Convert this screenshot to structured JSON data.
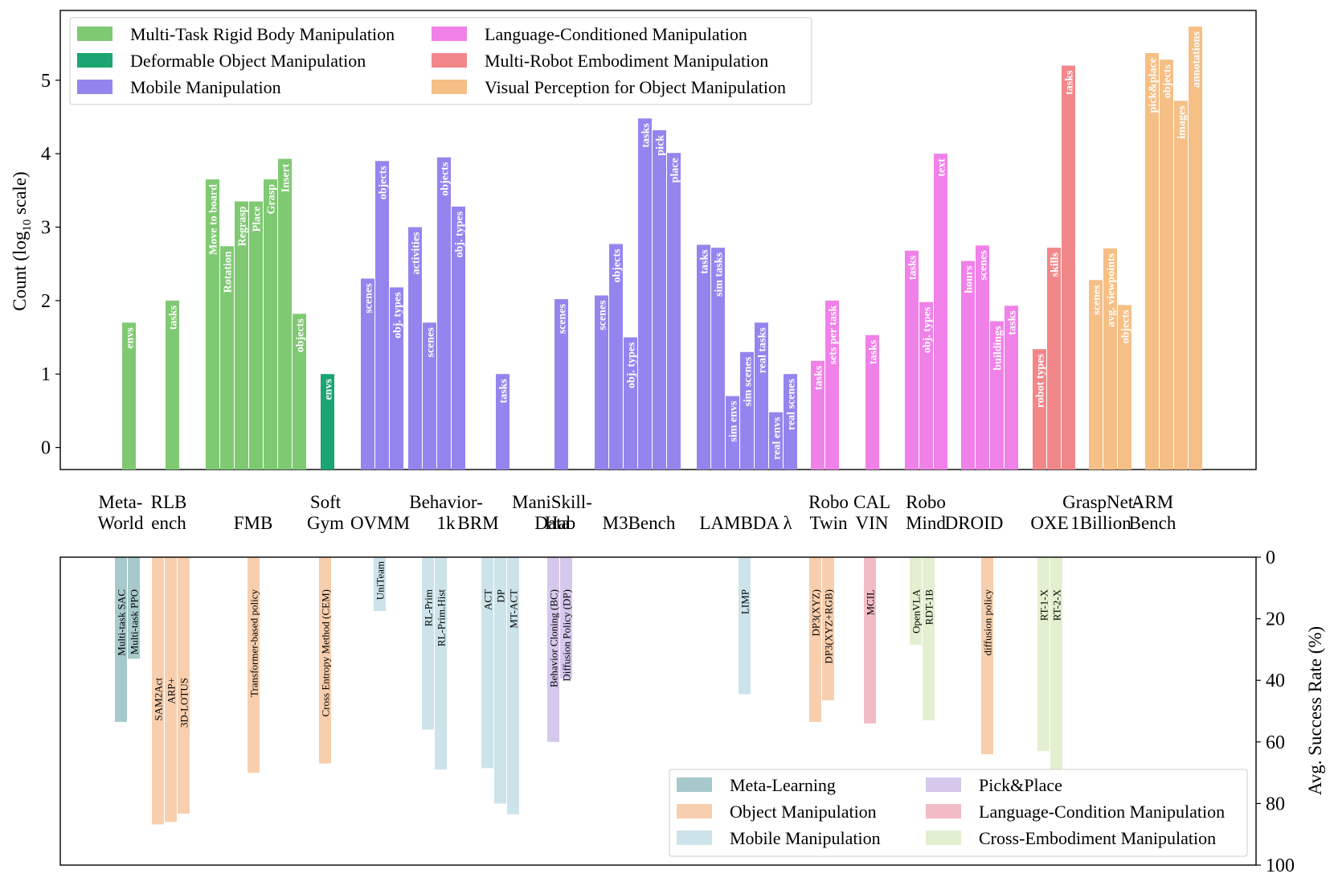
{
  "chart_data": [
    {
      "type": "bar",
      "ylabel_main": "Count (log",
      "ylabel_sub": "10",
      "ylabel_tail": " scale)",
      "ylim": [
        -0.3,
        5.95
      ],
      "yticks": [
        "0",
        "1",
        "2",
        "3",
        "4",
        "5"
      ],
      "legend": [
        {
          "name": "Multi-Task Rigid Body Manipulation",
          "color": "#7fc972"
        },
        {
          "name": "Deformable Object Manipulation",
          "color": "#1aa572"
        },
        {
          "name": "Mobile Manipulation",
          "color": "#9485ee"
        },
        {
          "name": "Language-Conditioned Manipulation",
          "color": "#f081e8"
        },
        {
          "name": "Multi-Robot Embodiment Manipulation",
          "color": "#f2878a"
        },
        {
          "name": "Visual Perception for Object Manipulation",
          "color": "#f5bf85"
        }
      ],
      "group_labels": [
        {
          "lines": [
            "Meta-",
            "World"
          ]
        },
        {
          "lines": [
            "RLB",
            "ench"
          ]
        },
        {
          "lines": [
            "FMB"
          ]
        },
        {
          "lines": [
            "Soft",
            "Gym"
          ]
        },
        {
          "lines": [
            "OVMM"
          ]
        },
        {
          "lines": [
            "Behavior-",
            "1k"
          ]
        },
        {
          "lines": [
            "BRM"
          ]
        },
        {
          "lines": [
            "ManiSkill-",
            "Data"
          ]
        },
        {
          "lines": [
            "Hab"
          ]
        },
        {
          "lines": [
            "M3Bench"
          ]
        },
        {
          "lines": [
            "LAMBDA λ"
          ]
        },
        {
          "lines": [
            "Robo",
            "Twin"
          ]
        },
        {
          "lines": [
            "CAL",
            "VIN"
          ]
        },
        {
          "lines": [
            "Robo",
            "Mind"
          ]
        },
        {
          "lines": [
            "DROID"
          ]
        },
        {
          "lines": [
            "OXE"
          ]
        },
        {
          "lines": [
            "GraspNet-",
            "1Billion"
          ]
        },
        {
          "lines": [
            "ARM",
            "Bench"
          ]
        }
      ],
      "bars": [
        {
          "group": "Meta-World",
          "label": "envs",
          "value": 1.7,
          "cat": 0
        },
        {
          "group": "RLBench",
          "label": "tasks",
          "value": 2.0,
          "cat": 0
        },
        {
          "group": "FMB",
          "label": "Move to board",
          "value": 3.65,
          "cat": 0
        },
        {
          "group": "FMB",
          "label": "Rotation",
          "value": 2.74,
          "cat": 0
        },
        {
          "group": "FMB",
          "label": "Regrasp",
          "value": 3.35,
          "cat": 0
        },
        {
          "group": "FMB",
          "label": "Place",
          "value": 3.35,
          "cat": 0
        },
        {
          "group": "FMB",
          "label": "Grasp",
          "value": 3.65,
          "cat": 0
        },
        {
          "group": "FMB",
          "label": "Insert",
          "value": 3.93,
          "cat": 0
        },
        {
          "group": "FMB",
          "label": "objects",
          "value": 1.82,
          "cat": 0
        },
        {
          "group": "SoftGym",
          "label": "envs",
          "value": 1.0,
          "cat": 1
        },
        {
          "group": "OVMM",
          "label": "scenes",
          "value": 2.3,
          "cat": 2
        },
        {
          "group": "OVMM",
          "label": "objects",
          "value": 3.9,
          "cat": 2
        },
        {
          "group": "OVMM",
          "label": "obj. types",
          "value": 2.18,
          "cat": 2
        },
        {
          "group": "Behavior-1k",
          "label": "activities",
          "value": 3.0,
          "cat": 2
        },
        {
          "group": "Behavior-1k",
          "label": "scenes",
          "value": 1.7,
          "cat": 2
        },
        {
          "group": "Behavior-1k",
          "label": "objects",
          "value": 3.95,
          "cat": 2
        },
        {
          "group": "Behavior-1k",
          "label": "obj. types",
          "value": 3.28,
          "cat": 2
        },
        {
          "group": "BRM",
          "label": "tasks",
          "value": 1.0,
          "cat": 2
        },
        {
          "group": "ManiSkill-Data",
          "label": "scenes",
          "value": 2.02,
          "cat": 2
        },
        {
          "group": "Hab",
          "label": "scenes",
          "value": 2.07,
          "cat": 2
        },
        {
          "group": "Hab",
          "label": "objects",
          "value": 2.77,
          "cat": 2
        },
        {
          "group": "Hab",
          "label": "obj. types",
          "value": 1.5,
          "cat": 2
        },
        {
          "group": "M3Bench",
          "label": "tasks",
          "value": 4.48,
          "cat": 2
        },
        {
          "group": "M3Bench",
          "label": "pick",
          "value": 4.32,
          "cat": 2
        },
        {
          "group": "M3Bench",
          "label": "place",
          "value": 4.01,
          "cat": 2
        },
        {
          "group": "LAMBDA",
          "label": "tasks",
          "value": 2.76,
          "cat": 2
        },
        {
          "group": "LAMBDA",
          "label": "sim tasks",
          "value": 2.72,
          "cat": 2
        },
        {
          "group": "LAMBDA",
          "label": "sim envs",
          "value": 0.7,
          "cat": 2
        },
        {
          "group": "LAMBDA",
          "label": "sim scenes",
          "value": 1.3,
          "cat": 2
        },
        {
          "group": "LAMBDA",
          "label": "real tasks",
          "value": 1.7,
          "cat": 2
        },
        {
          "group": "LAMBDA",
          "label": "real envs",
          "value": 0.48,
          "cat": 2
        },
        {
          "group": "LAMBDA",
          "label": "real scenes",
          "value": 1.0,
          "cat": 2
        },
        {
          "group": "RoboTwin",
          "label": "tasks",
          "value": 1.18,
          "cat": 3
        },
        {
          "group": "RoboTwin",
          "label": "sets per task",
          "value": 2.0,
          "cat": 3
        },
        {
          "group": "CALVIN",
          "label": "tasks",
          "value": 1.53,
          "cat": 3
        },
        {
          "group": "RoboMind",
          "label": "tasks",
          "value": 2.68,
          "cat": 3
        },
        {
          "group": "RoboMind",
          "label": "obj. types",
          "value": 1.98,
          "cat": 3
        },
        {
          "group": "RoboMind",
          "label": "text",
          "value": 4.0,
          "cat": 3
        },
        {
          "group": "DROID",
          "label": "hours",
          "value": 2.54,
          "cat": 3
        },
        {
          "group": "DROID",
          "label": "scenes",
          "value": 2.75,
          "cat": 3
        },
        {
          "group": "DROID",
          "label": "buildings",
          "value": 1.72,
          "cat": 3
        },
        {
          "group": "DROID",
          "label": "tasks",
          "value": 1.93,
          "cat": 3
        },
        {
          "group": "OXE",
          "label": "robot types",
          "value": 1.34,
          "cat": 4
        },
        {
          "group": "OXE",
          "label": "skills",
          "value": 2.72,
          "cat": 4
        },
        {
          "group": "OXE",
          "label": "tasks",
          "value": 5.2,
          "cat": 4
        },
        {
          "group": "GraspNet-1Billion",
          "label": "scenes",
          "value": 2.28,
          "cat": 5
        },
        {
          "group": "GraspNet-1Billion",
          "label": "avg. viewpoints",
          "value": 2.71,
          "cat": 5
        },
        {
          "group": "GraspNet-1Billion",
          "label": "objects",
          "value": 1.94,
          "cat": 5
        },
        {
          "group": "ARMBench",
          "label": "pick&place",
          "value": 5.37,
          "cat": 5
        },
        {
          "group": "ARMBench",
          "label": "objects",
          "value": 5.28,
          "cat": 5
        },
        {
          "group": "ARMBench",
          "label": "images",
          "value": 4.72,
          "cat": 5
        },
        {
          "group": "ARMBench",
          "label": "annotations",
          "value": 5.73,
          "cat": 5
        }
      ]
    },
    {
      "type": "bar",
      "ylabel": "Avg. Success Rate (%)",
      "ylim": [
        0,
        100
      ],
      "yticks": [
        "0",
        "20",
        "40",
        "60",
        "80",
        "100"
      ],
      "legend": [
        {
          "name": "Meta-Learning",
          "color": "#a7c9cb"
        },
        {
          "name": "Object Manipulation",
          "color": "#f8cfae"
        },
        {
          "name": "Mobile Manipulation",
          "color": "#cde3ea"
        },
        {
          "name": "Pick&Place",
          "color": "#d5c8ec"
        },
        {
          "name": "Language-Condition Manipulation",
          "color": "#f3bcc5"
        },
        {
          "name": "Cross-Embodiment Manipulation",
          "color": "#e3f0d0"
        }
      ],
      "bars": [
        {
          "label": "Multi-task SAC",
          "value": 53.5,
          "cat": 0
        },
        {
          "label": "Multi-task PPO",
          "value": 33,
          "cat": 0
        },
        {
          "label": "SAM2Act",
          "value": 86.8,
          "cat": 1
        },
        {
          "label": "ARP+",
          "value": 86.0,
          "cat": 1
        },
        {
          "label": "3D-LOTUS",
          "value": 83.3,
          "cat": 1
        },
        {
          "label": "Transformer-based policy",
          "value": 70.0,
          "cat": 1
        },
        {
          "label": "Cross Entropy Method (CEM)",
          "value": 67.0,
          "cat": 1
        },
        {
          "label": "UniTeam",
          "value": 17.5,
          "cat": 2
        },
        {
          "label": "RL-Prim",
          "value": 56.0,
          "cat": 2
        },
        {
          "label": "RL-Prim.Hist",
          "value": 69.0,
          "cat": 2
        },
        {
          "label": "ACT",
          "value": 68.5,
          "cat": 2
        },
        {
          "label": "DP",
          "value": 80.0,
          "cat": 2
        },
        {
          "label": "MT-ACT",
          "value": 83.5,
          "cat": 2
        },
        {
          "label": "Behavior Cloning (BC)",
          "value": 60.0,
          "cat": 3
        },
        {
          "label": "Diffusion Policy (DP)",
          "value": 39.5,
          "cat": 3
        },
        {
          "label": "LIMP",
          "value": 44.5,
          "cat": 2
        },
        {
          "label": "DP3(XYZ)",
          "value": 53.5,
          "cat": 1
        },
        {
          "label": "DP3(XYZ+RGB)",
          "value": 46.5,
          "cat": 1
        },
        {
          "label": "MCIL",
          "value": 54.0,
          "cat": 4
        },
        {
          "label": "OpenVLA",
          "value": 28.5,
          "cat": 5
        },
        {
          "label": "RDT-1B",
          "value": 53.0,
          "cat": 5
        },
        {
          "label": "diffusion policy",
          "value": 64.0,
          "cat": 1
        },
        {
          "label": "RT-1-X",
          "value": 63.0,
          "cat": 5
        },
        {
          "label": "RT-2-X",
          "value": 69.5,
          "cat": 5
        }
      ]
    }
  ]
}
